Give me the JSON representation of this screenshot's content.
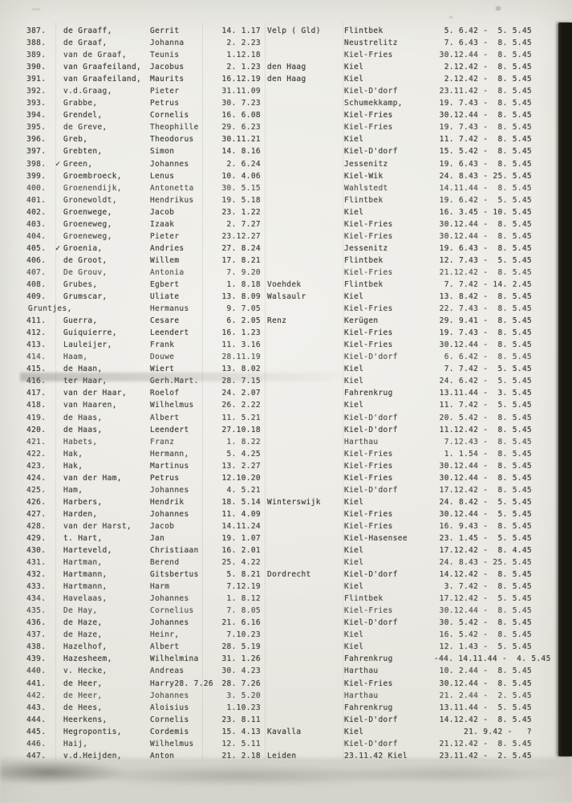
{
  "document": {
    "kind": "scanned typewritten registry page",
    "language": "Dutch/German",
    "ink_color": "#45443e",
    "paper_color": "#ecebe5",
    "edge_bar_color": "#17170f"
  },
  "table": {
    "columns": [
      "number",
      "surname",
      "first_name",
      "birth_date",
      "birth_place",
      "camp_location",
      "period"
    ],
    "rows": [
      {
        "num": "387.",
        "mark": "",
        "surname": "de Graaff,",
        "first": "Gerrit",
        "dob": "14. 1.17",
        "place": "Velp ( Gld)",
        "camp": "Flintbek",
        "period": "5. 6.42 -  5. 5.45"
      },
      {
        "num": "388.",
        "mark": "",
        "surname": "de Graaf,",
        "first": "Johanna",
        "dob": "2. 2.23",
        "place": "",
        "camp": "Neustrelitz",
        "period": "7. 6.43 -  8. 5.45"
      },
      {
        "num": "389.",
        "mark": "",
        "surname": "van de Graaf,",
        "first": "Teunis",
        "dob": "1.12.18",
        "place": "",
        "camp": "Kiel-Fries",
        "period": "30.12.44 -  8. 5.45"
      },
      {
        "num": "390.",
        "mark": "",
        "surname": "van Graafeiland,",
        "first": "Jacobus",
        "dob": "2. 1.23",
        "place": "den Haag",
        "camp": "Kiel",
        "period": "2.12.42 -  8. 5.45"
      },
      {
        "num": "391.",
        "mark": "",
        "surname": "van Graafeiland,",
        "first": "Maurits",
        "dob": "16.12.19",
        "place": "den Haag",
        "camp": "Kiel",
        "period": "2.12.42 -  8. 5.45"
      },
      {
        "num": "392.",
        "mark": "",
        "surname": "v.d.Graag,",
        "first": "Pieter",
        "dob": "31.11.09",
        "place": "",
        "camp": "Kiel-D'dorf",
        "period": "23.11.42 -  8. 5.45"
      },
      {
        "num": "393.",
        "mark": "",
        "surname": "Grabbe,",
        "first": "Petrus",
        "dob": "30. 7.23",
        "place": "",
        "camp": "Schumekkamp,",
        "period": "19. 7.43 -  8. 5.45"
      },
      {
        "num": "394.",
        "mark": "",
        "surname": "Grendel,",
        "first": "Cornelis",
        "dob": "16. 6.08",
        "place": "",
        "camp": "Kiel-Fries",
        "period": "30.12.44 -  8. 5.45"
      },
      {
        "num": "395.",
        "mark": "",
        "surname": "de Greve,",
        "first": "Theophille",
        "dob": "29. 6.23",
        "place": "",
        "camp": "Kiel-Fries",
        "period": "19. 7.43 -  8. 5.45"
      },
      {
        "num": "396.",
        "mark": "",
        "surname": "Greb,",
        "first": "Theodorus",
        "dob": "30.11.21",
        "place": "",
        "camp": "Kiel",
        "period": "11. 7.42 -  8. 5.45"
      },
      {
        "num": "397.",
        "mark": "",
        "surname": "Grebten,",
        "first": "Simon",
        "dob": "14. 8.16",
        "place": "",
        "camp": "Kiel-D'dorf",
        "period": "15. 5.42 -  8. 5.45"
      },
      {
        "num": "398.",
        "mark": "✓",
        "surname": "Green,",
        "first": "Johannes",
        "dob": "2. 6.24",
        "place": "",
        "camp": "Jessenitz",
        "period": "19. 6.43 -  8. 5.45"
      },
      {
        "num": "399.",
        "mark": "",
        "surname": "Groembroeck,",
        "first": "Lenus",
        "dob": "10. 4.06",
        "place": "",
        "camp": "Kiel-Wik",
        "period": "24. 8.43 - 25. 5.45"
      },
      {
        "num": "400.",
        "mark": "",
        "surname": "Groenendijk,",
        "first": "Antonetta",
        "dob": "30. 5.15",
        "place": "",
        "camp": "Wahlstedt",
        "period": "14.11.44 -  8. 5.45"
      },
      {
        "num": "401.",
        "mark": "",
        "surname": "Gronewoldt,",
        "first": "Hendrikus",
        "dob": "19. 5.18",
        "place": "",
        "camp": "Flintbek",
        "period": "19. 6.42 -  5. 5.45"
      },
      {
        "num": "402.",
        "mark": "",
        "surname": "Groenwege,",
        "first": "Jacob",
        "dob": "23. 1.22",
        "place": "",
        "camp": "Kiel",
        "period": "16. 3.45 - 10. 5.45"
      },
      {
        "num": "403.",
        "mark": "",
        "surname": "Groeneweg,",
        "first": "Izaak",
        "dob": "2. 7.27",
        "place": "",
        "camp": "Kiel-Fries",
        "period": "30.12.44 -  8. 5.45"
      },
      {
        "num": "404.",
        "mark": "",
        "surname": "Groeneweg,",
        "first": "Pieter",
        "dob": "23.12.27",
        "place": "",
        "camp": "Kiel-Fries",
        "period": "30.12.44 -  8. 5.45"
      },
      {
        "num": "405.",
        "mark": "✓",
        "surname": "Groenia,",
        "first": "Andries",
        "dob": "27. 8.24",
        "place": "",
        "camp": "Jessenitz",
        "period": "19. 6.43 -  8. 5.45"
      },
      {
        "num": "406.",
        "mark": "",
        "surname": "de Groot,",
        "first": "Willem",
        "dob": "17. 8.21",
        "place": "",
        "camp": "Flintbek",
        "period": "12. 7.43 -  5. 5.45"
      },
      {
        "num": "407.",
        "mark": "",
        "surname": "De Grouv,",
        "first": "Antonia",
        "dob": "7. 9.20",
        "place": "",
        "camp": "Kiel-Fries",
        "period": "21.12.42 -  8. 5.45"
      },
      {
        "num": "408.",
        "mark": "",
        "surname": "Grubes,",
        "first": "Egbert",
        "dob": "1. 8.18",
        "place": "Voehdek",
        "camp": "Flintbek",
        "period": "7. 7.42 - 14. 2.45"
      },
      {
        "num": "409.",
        "mark": "",
        "surname": "Grumscar,",
        "first": "Uliate",
        "dob": "13. 8.09",
        "place": "Walsaulr",
        "camp": "Kiel",
        "period": "13. 8.42 -  8. 5.45"
      },
      {
        "num": "",
        "mark": "",
        "outdent": true,
        "surname": "Gruntjes,",
        "first": "Hermanus",
        "dob": "9. 7.05",
        "place": "",
        "camp": "Kiel-Fries",
        "period": "22. 7.43 -  8. 5.45"
      },
      {
        "num": "411.",
        "mark": "",
        "surname": "Guerra,",
        "first": "Cesare",
        "dob": "6. 2.05",
        "place": "Renz",
        "camp": "Kerügen",
        "period": "29. 9.41 -  8. 5.45"
      },
      {
        "num": "412.",
        "mark": "",
        "surname": "Guiquierre,",
        "first": "Leendert",
        "dob": "16. 1.23",
        "place": "",
        "camp": "Kiel-Fries",
        "period": "19. 7.43 -  8. 5.45"
      },
      {
        "num": "413.",
        "mark": "",
        "surname": "Lauleijer,",
        "first": "Frank",
        "dob": "11. 3.16",
        "place": "",
        "camp": "Kiel-Fries",
        "period": "30.12.44 -  8. 5.45"
      },
      {
        "num": "414.",
        "mark": "",
        "surname": "Haam,",
        "first": "Douwe",
        "dob": "28.11.19",
        "place": "",
        "camp": "Kiel-D'dorf",
        "period": "6. 6.42 -  8. 5.45"
      },
      {
        "num": "415.",
        "mark": "",
        "surname": "de Haan,",
        "first": "Wiert",
        "dob": "13. 8.02",
        "place": "",
        "camp": "Kiel",
        "period": "7. 7.42 -  5. 5.45"
      },
      {
        "num": "416.",
        "mark": "",
        "surname": "ter Haar,",
        "first": "Gerh.Mart.",
        "dob": "28. 7.15",
        "place": "",
        "camp": "Kiel",
        "period": "24. 6.42 -  5. 5.45"
      },
      {
        "num": "417.",
        "mark": "",
        "surname": "van der Haar,",
        "first": "Roelof",
        "dob": "24. 2.07",
        "place": "",
        "camp": "Fahrenkrug",
        "period": "13.11.44 -  3. 5.45"
      },
      {
        "num": "418.",
        "mark": "",
        "surname": "van Haaren,",
        "first": "Wilhelmus",
        "dob": "26. 2.22",
        "place": "",
        "camp": "Kiel",
        "period": "11. 7.42 -  5. 5.45"
      },
      {
        "num": "419.",
        "mark": "",
        "surname": "de Haas,",
        "first": "Albert",
        "dob": "11. 5.21",
        "place": "",
        "camp": "Kiel-D'dorf",
        "period": "20. 5.42 -  8. 5.45"
      },
      {
        "num": "420.",
        "mark": "",
        "surname": "de Haas,",
        "first": "Leendert",
        "dob": "27.10.18",
        "place": "",
        "camp": "Kiel-D'dorf",
        "period": "11.12.42 -  8. 5.45"
      },
      {
        "num": "421.",
        "mark": "",
        "surname": "Habets,",
        "first": "Franz",
        "dob": "1. 8.22",
        "place": "",
        "camp": "Harthau",
        "period": "7.12.43 -  8. 5.45"
      },
      {
        "num": "422.",
        "mark": "",
        "surname": "Hak,",
        "first": "Hermann,",
        "dob": "5. 4.25",
        "place": "",
        "camp": "Kiel-Fries",
        "period": "1. 1.54 -  8. 5.45"
      },
      {
        "num": "423.",
        "mark": "",
        "surname": "Hak,",
        "first": "Martinus",
        "dob": "13. 2.27",
        "place": "",
        "camp": "Kiel-Fries",
        "period": "30.12.44 -  8. 5.45"
      },
      {
        "num": "424.",
        "mark": "",
        "surname": "van der Ham,",
        "first": "Petrus",
        "dob": "12.10.20",
        "place": "",
        "camp": "Kiel-Fries",
        "period": "30.12.44 -  8. 5.45"
      },
      {
        "num": "425.",
        "mark": "",
        "surname": "Ham,",
        "first": "Johannes",
        "dob": "4. 5.21",
        "place": "",
        "camp": "Kiel-D'dorf",
        "period": "17.12.42 -  8. 5.45"
      },
      {
        "num": "426.",
        "mark": "",
        "surname": "Harbers,",
        "first": "Hendrik",
        "dob": "18. 5.14",
        "place": "Winterswijk",
        "camp": "Kiel",
        "period": "24. 8.42 -  5. 5.45"
      },
      {
        "num": "427.",
        "mark": "",
        "surname": "Harden,",
        "first": "Johannes",
        "dob": "11. 4.09",
        "place": "",
        "camp": "Kiel-Fries",
        "period": "30.12.44 -  5. 5.45"
      },
      {
        "num": "428.",
        "mark": "",
        "surname": "van der Harst,",
        "first": "Jacob",
        "dob": "14.11.24",
        "place": "",
        "camp": "Kiel-Fries",
        "period": "16. 9.43 -  8. 5.45"
      },
      {
        "num": "429.",
        "mark": "",
        "surname": "t. Hart,",
        "first": "Jan",
        "dob": "19. 1.07",
        "place": "",
        "camp": "Kiel-Hasensee",
        "period": "23. 1.45 -  5. 5.45"
      },
      {
        "num": "430.",
        "mark": "",
        "surname": "Harteveld,",
        "first": "Christiaan",
        "dob": "16. 2.01",
        "place": "",
        "camp": "Kiel",
        "period": "17.12.42 -  8. 4.45"
      },
      {
        "num": "431.",
        "mark": "",
        "surname": "Hartman,",
        "first": "Berend",
        "dob": "25. 4.22",
        "place": "",
        "camp": "Kiel",
        "period": "24. 8.43 - 25. 5.45"
      },
      {
        "num": "432.",
        "mark": "",
        "surname": "Hartmann,",
        "first": "Gitsbertus",
        "dob": "5. 8.21",
        "place": "Dordrecht",
        "camp": "Kiel-D'dorf",
        "period": "14.12.42 -  8. 5.45"
      },
      {
        "num": "433.",
        "mark": "",
        "surname": "Hartmann,",
        "first": "Harm",
        "dob": "7.12.19",
        "place": "",
        "camp": "Kiel",
        "period": "3. 7.42 -  8. 5.45"
      },
      {
        "num": "434.",
        "mark": "",
        "surname": "Havelaas,",
        "first": "Johannes",
        "dob": "1. 8.12",
        "place": "",
        "camp": "Flintbek",
        "period": "17.12.42 -  5. 5.45"
      },
      {
        "num": "435.",
        "mark": "",
        "surname": "De Hay,",
        "first": "Cornelius",
        "dob": "7. 8.05",
        "place": "",
        "camp": "Kiel-Fries",
        "period": "30.12.44 -  8. 5.45"
      },
      {
        "num": "436.",
        "mark": "",
        "surname": "de Haze,",
        "first": "Johannes",
        "dob": "21. 6.16",
        "place": "",
        "camp": "Kiel-D'dorf",
        "period": "30. 5.42 -  8. 5.45"
      },
      {
        "num": "437.",
        "mark": "",
        "surname": "de Haze,",
        "first": "Heinr,",
        "dob": "7.10.23",
        "place": "",
        "camp": "Kiel",
        "period": "16. 5.42 -  8. 5.45"
      },
      {
        "num": "438.",
        "mark": "",
        "surname": "Hazelhof,",
        "first": "Albert",
        "dob": "28. 5.19",
        "place": "",
        "camp": "Kiel",
        "period": "12. 1.43 -  5. 5.45"
      },
      {
        "num": "439.",
        "mark": "",
        "surname": "Hazesheem,",
        "first": "Wilhelmina",
        "dob": "31. 1.26",
        "place": "",
        "camp": "Fahrenkrug",
        "period": "-44. 14.11.44 -  4. 5.45"
      },
      {
        "num": "440.",
        "mark": "",
        "surname": "v. Hecke,",
        "first": "Andreas",
        "dob": "30. 4.23",
        "place": "",
        "camp": "Harthau",
        "period": "10. 2.44 -  8. 5.45"
      },
      {
        "num": "441.",
        "mark": "",
        "surname": "de Heer,",
        "first": "Harry28. 7.26",
        "dob": "28. 7.26",
        "place": "",
        "camp": "Kiel-Fries",
        "period": "30.12.44 -  8. 5.45"
      },
      {
        "num": "442.",
        "mark": "",
        "surname": "de Heer,",
        "first": "Johannes",
        "dob": "3. 5.20",
        "place": "",
        "camp": "Harthau",
        "period": "21. 2.44 -  2. 5.45"
      },
      {
        "num": "443.",
        "mark": "",
        "surname": "de Hees,",
        "first": "Aloisius",
        "dob": "1.10.23",
        "place": "",
        "camp": "Fahrenkrug",
        "period": "13.11.44 -  5. 5.45"
      },
      {
        "num": "444.",
        "mark": "",
        "surname": "Heerkens,",
        "first": "Cornelis",
        "dob": "23. 8.11",
        "place": "",
        "camp": "Kiel-D'dorf",
        "period": "14.12.42 -  8. 5.45"
      },
      {
        "num": "445.",
        "mark": "",
        "surname": "Hegropontis,",
        "first": "Cordemis",
        "dob": "15. 4.13",
        "place": "Kavalla",
        "camp": "Kiel",
        "period": "21. 9.42 -   ?"
      },
      {
        "num": "446.",
        "mark": "",
        "surname": "Haij,",
        "first": "Wilhelmus",
        "dob": "12. 5.11",
        "place": "",
        "camp": "Kiel-D'dorf",
        "period": "21.12.42 -  8. 5.45"
      },
      {
        "num": "447.",
        "mark": "",
        "surname": "v.d.Heijden,",
        "first": "Anton",
        "dob": "21. 2.18",
        "place": "Leiden",
        "camp": "23.11.42 Kiel",
        "period": "23.11.42 -  2. 5.45"
      }
    ]
  }
}
